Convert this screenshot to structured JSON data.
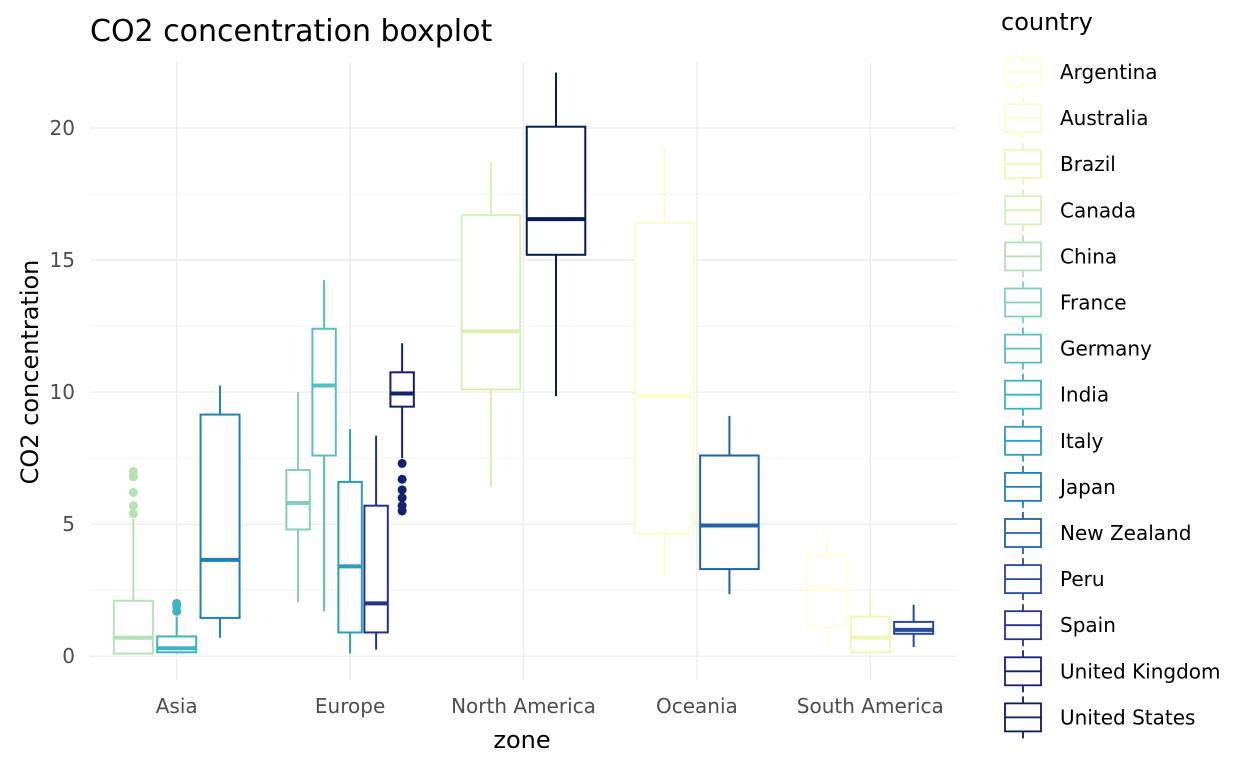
{
  "chart_data": {
    "type": "box",
    "title": "CO2 concentration boxplot",
    "xlabel": "zone",
    "ylabel": "CO2 concentration",
    "ylim": [
      -0.9,
      22.5
    ],
    "yticks": [
      0,
      5,
      10,
      15,
      20
    ],
    "grid": true,
    "legend_title": "country",
    "legend_position": "right",
    "categories": [
      "Asia",
      "Europe",
      "North America",
      "Oceania",
      "South America"
    ],
    "countries": [
      {
        "name": "Argentina",
        "color": "#ffffd9"
      },
      {
        "name": "Australia",
        "color": "#fbfdc6"
      },
      {
        "name": "Brazil",
        "color": "#eef8b1"
      },
      {
        "name": "Canada",
        "color": "#d8efb5"
      },
      {
        "name": "China",
        "color": "#b4e2b6"
      },
      {
        "name": "France",
        "color": "#83cfbb"
      },
      {
        "name": "Germany",
        "color": "#5abec0"
      },
      {
        "name": "India",
        "color": "#3eb3c3"
      },
      {
        "name": "Italy",
        "color": "#2b9ec0"
      },
      {
        "name": "Japan",
        "color": "#1f80b8"
      },
      {
        "name": "New Zealand",
        "color": "#2062a8"
      },
      {
        "name": "Peru",
        "color": "#234a9f"
      },
      {
        "name": "Spain",
        "color": "#24338d"
      },
      {
        "name": "United Kingdom",
        "color": "#142070"
      },
      {
        "name": "United States",
        "color": "#081d58"
      }
    ],
    "groups": [
      {
        "zone": "Asia",
        "boxes": [
          {
            "country": "China",
            "min": 0.1,
            "q1": 0.1,
            "median": 0.7,
            "q3": 2.1,
            "max": 5.2,
            "outliers": [
              5.4,
              5.7,
              6.2,
              6.8,
              7.0
            ]
          },
          {
            "country": "India",
            "min": 0.1,
            "q1": 0.15,
            "median": 0.3,
            "q3": 0.75,
            "max": 1.5,
            "outliers": [
              1.7,
              1.9,
              2.0
            ]
          },
          {
            "country": "Japan",
            "min": 0.7,
            "q1": 1.45,
            "median": 3.65,
            "q3": 9.15,
            "max": 10.25,
            "outliers": []
          }
        ]
      },
      {
        "zone": "Europe",
        "boxes": [
          {
            "country": "France",
            "min": 2.05,
            "q1": 4.8,
            "median": 5.8,
            "q3": 7.05,
            "max": 10.0,
            "outliers": []
          },
          {
            "country": "Germany",
            "min": 1.7,
            "q1": 7.6,
            "median": 10.25,
            "q3": 12.4,
            "max": 14.25,
            "outliers": []
          },
          {
            "country": "Italy",
            "min": 0.1,
            "q1": 0.9,
            "median": 3.4,
            "q3": 6.6,
            "max": 8.6,
            "outliers": []
          },
          {
            "country": "Spain",
            "min": 0.25,
            "q1": 0.9,
            "median": 2.0,
            "q3": 5.7,
            "max": 8.35,
            "outliers": []
          },
          {
            "country": "United Kingdom",
            "min": 7.5,
            "q1": 9.45,
            "median": 9.95,
            "q3": 10.75,
            "max": 11.85,
            "outliers": [
              5.5,
              5.7,
              6.0,
              6.3,
              6.7,
              7.3
            ]
          }
        ]
      },
      {
        "zone": "North America",
        "boxes": [
          {
            "country": "Canada",
            "min": 6.4,
            "q1": 10.1,
            "median": 12.3,
            "q3": 16.7,
            "max": 18.7,
            "outliers": []
          },
          {
            "country": "United States",
            "min": 9.85,
            "q1": 15.2,
            "median": 16.55,
            "q3": 20.05,
            "max": 22.1,
            "outliers": []
          }
        ]
      },
      {
        "zone": "Oceania",
        "boxes": [
          {
            "country": "Australia",
            "min": 3.0,
            "q1": 4.65,
            "median": 9.85,
            "q3": 16.4,
            "max": 19.3,
            "outliers": []
          },
          {
            "country": "New Zealand",
            "min": 2.35,
            "q1": 3.3,
            "median": 4.95,
            "q3": 7.6,
            "max": 9.1,
            "outliers": []
          }
        ]
      },
      {
        "zone": "South America",
        "boxes": [
          {
            "country": "Argentina",
            "min": 0.3,
            "q1": 1.1,
            "median": 2.55,
            "q3": 3.8,
            "max": 4.7,
            "outliers": []
          },
          {
            "country": "Brazil",
            "min": 0.1,
            "q1": 0.15,
            "median": 0.7,
            "q3": 1.5,
            "max": 2.3,
            "outliers": []
          },
          {
            "country": "Peru",
            "min": 0.35,
            "q1": 0.85,
            "median": 1.0,
            "q3": 1.3,
            "max": 1.95,
            "outliers": []
          }
        ]
      }
    ]
  }
}
